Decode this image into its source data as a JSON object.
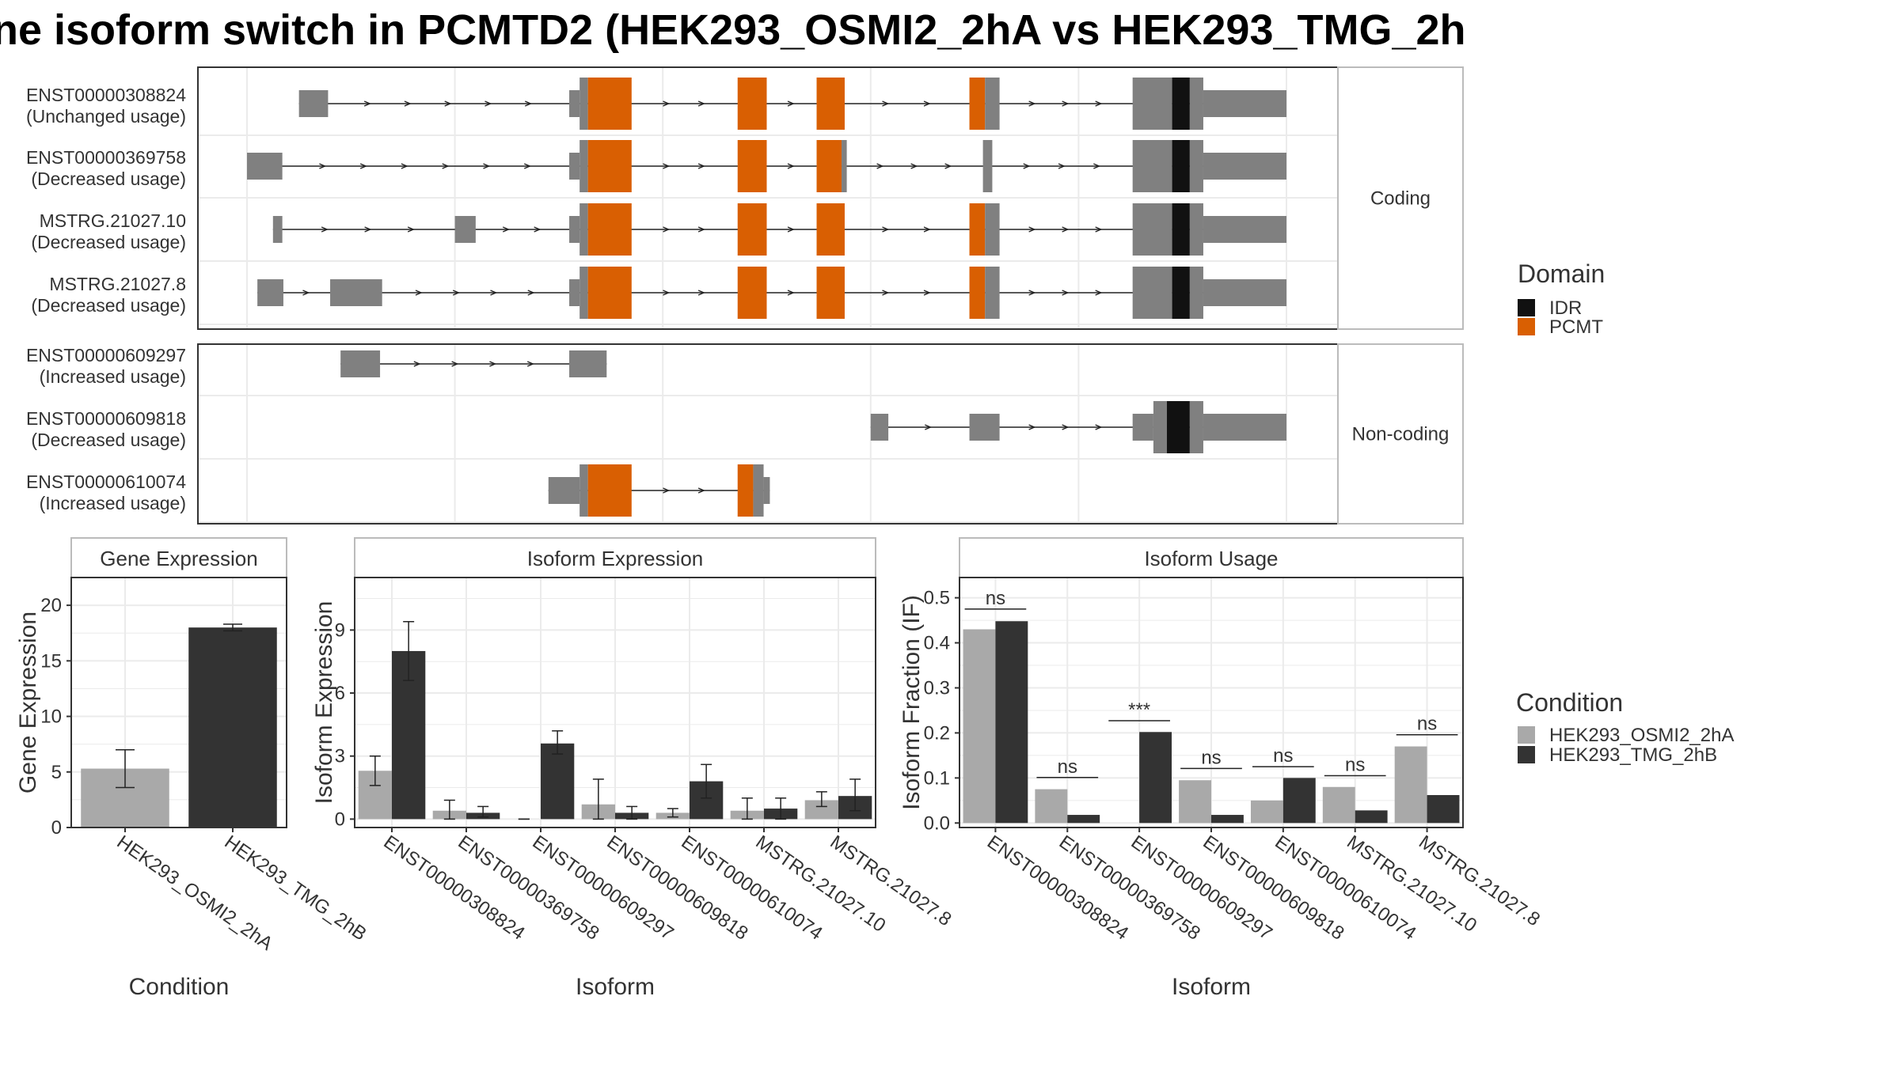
{
  "title": "ne isoform switch in PCMTD2 (HEK293_OSMI2_2hA vs HEK293_TMG_2h",
  "colors": {
    "exon": "#808080",
    "pcmt": "#D95F02",
    "idr": "#111111",
    "cond_a": "#A9A9A9",
    "cond_b": "#333333",
    "panel_border": "#333333",
    "strip_border": "#BBBBBB",
    "grid": "#EBEBEB"
  },
  "structure": {
    "facets": [
      {
        "label": "Coding",
        "transcripts": [
          {
            "id": "ENST00000308824",
            "usage": "(Unchanged usage)",
            "segments": [
              {
                "start": 0.05,
                "end": 0.078,
                "type": "exon",
                "h": "thin"
              },
              {
                "start": 0.31,
                "end": 0.32,
                "type": "exon",
                "h": "thin"
              },
              {
                "start": 0.32,
                "end": 0.328,
                "type": "exon",
                "h": "thick"
              },
              {
                "start": 0.328,
                "end": 0.37,
                "type": "pcmt",
                "h": "thick"
              },
              {
                "start": 0.472,
                "end": 0.5,
                "type": "pcmt",
                "h": "thick"
              },
              {
                "start": 0.548,
                "end": 0.575,
                "type": "pcmt",
                "h": "thick"
              },
              {
                "start": 0.695,
                "end": 0.71,
                "type": "pcmt",
                "h": "thick"
              },
              {
                "start": 0.71,
                "end": 0.724,
                "type": "exon",
                "h": "thick"
              },
              {
                "start": 0.852,
                "end": 0.89,
                "type": "exon",
                "h": "thick"
              },
              {
                "start": 0.89,
                "end": 0.907,
                "type": "idr",
                "h": "thick"
              },
              {
                "start": 0.907,
                "end": 0.92,
                "type": "exon",
                "h": "thick"
              },
              {
                "start": 0.92,
                "end": 1.0,
                "type": "exon",
                "h": "thin"
              }
            ]
          },
          {
            "id": "ENST00000369758",
            "usage": "(Decreased usage)",
            "segments": [
              {
                "start": 0.0,
                "end": 0.034,
                "type": "exon",
                "h": "thin"
              },
              {
                "start": 0.31,
                "end": 0.32,
                "type": "exon",
                "h": "thin"
              },
              {
                "start": 0.32,
                "end": 0.328,
                "type": "exon",
                "h": "thick"
              },
              {
                "start": 0.328,
                "end": 0.37,
                "type": "pcmt",
                "h": "thick"
              },
              {
                "start": 0.472,
                "end": 0.5,
                "type": "pcmt",
                "h": "thick"
              },
              {
                "start": 0.548,
                "end": 0.572,
                "type": "pcmt",
                "h": "thick"
              },
              {
                "start": 0.572,
                "end": 0.577,
                "type": "exon",
                "h": "thick"
              },
              {
                "start": 0.708,
                "end": 0.717,
                "type": "exon",
                "h": "thick"
              },
              {
                "start": 0.852,
                "end": 0.89,
                "type": "exon",
                "h": "thick"
              },
              {
                "start": 0.89,
                "end": 0.907,
                "type": "idr",
                "h": "thick"
              },
              {
                "start": 0.907,
                "end": 0.92,
                "type": "exon",
                "h": "thick"
              },
              {
                "start": 0.92,
                "end": 1.0,
                "type": "exon",
                "h": "thin"
              }
            ]
          },
          {
            "id": "MSTRG.21027.10",
            "usage": "(Decreased usage)",
            "segments": [
              {
                "start": 0.025,
                "end": 0.034,
                "type": "exon",
                "h": "thin"
              },
              {
                "start": 0.2,
                "end": 0.22,
                "type": "exon",
                "h": "thin"
              },
              {
                "start": 0.31,
                "end": 0.32,
                "type": "exon",
                "h": "thin"
              },
              {
                "start": 0.32,
                "end": 0.328,
                "type": "exon",
                "h": "thick"
              },
              {
                "start": 0.328,
                "end": 0.37,
                "type": "pcmt",
                "h": "thick"
              },
              {
                "start": 0.472,
                "end": 0.5,
                "type": "pcmt",
                "h": "thick"
              },
              {
                "start": 0.548,
                "end": 0.575,
                "type": "pcmt",
                "h": "thick"
              },
              {
                "start": 0.695,
                "end": 0.71,
                "type": "pcmt",
                "h": "thick"
              },
              {
                "start": 0.71,
                "end": 0.724,
                "type": "exon",
                "h": "thick"
              },
              {
                "start": 0.852,
                "end": 0.89,
                "type": "exon",
                "h": "thick"
              },
              {
                "start": 0.89,
                "end": 0.907,
                "type": "idr",
                "h": "thick"
              },
              {
                "start": 0.907,
                "end": 0.92,
                "type": "exon",
                "h": "thick"
              },
              {
                "start": 0.92,
                "end": 1.0,
                "type": "exon",
                "h": "thin"
              }
            ]
          },
          {
            "id": "MSTRG.21027.8",
            "usage": "(Decreased usage)",
            "segments": [
              {
                "start": 0.01,
                "end": 0.035,
                "type": "exon",
                "h": "thin"
              },
              {
                "start": 0.08,
                "end": 0.13,
                "type": "exon",
                "h": "thin"
              },
              {
                "start": 0.31,
                "end": 0.32,
                "type": "exon",
                "h": "thin"
              },
              {
                "start": 0.32,
                "end": 0.328,
                "type": "exon",
                "h": "thick"
              },
              {
                "start": 0.328,
                "end": 0.37,
                "type": "pcmt",
                "h": "thick"
              },
              {
                "start": 0.472,
                "end": 0.5,
                "type": "pcmt",
                "h": "thick"
              },
              {
                "start": 0.548,
                "end": 0.575,
                "type": "pcmt",
                "h": "thick"
              },
              {
                "start": 0.695,
                "end": 0.71,
                "type": "pcmt",
                "h": "thick"
              },
              {
                "start": 0.71,
                "end": 0.724,
                "type": "exon",
                "h": "thick"
              },
              {
                "start": 0.852,
                "end": 0.89,
                "type": "exon",
                "h": "thick"
              },
              {
                "start": 0.89,
                "end": 0.907,
                "type": "idr",
                "h": "thick"
              },
              {
                "start": 0.907,
                "end": 0.92,
                "type": "exon",
                "h": "thick"
              },
              {
                "start": 0.92,
                "end": 1.0,
                "type": "exon",
                "h": "thin"
              }
            ]
          }
        ]
      },
      {
        "label": "Non-coding",
        "transcripts": [
          {
            "id": "ENST00000609297",
            "usage": "(Increased usage)",
            "segments": [
              {
                "start": 0.09,
                "end": 0.128,
                "type": "exon",
                "h": "thin"
              },
              {
                "start": 0.31,
                "end": 0.346,
                "type": "exon",
                "h": "thin"
              }
            ]
          },
          {
            "id": "ENST00000609818",
            "usage": "(Decreased usage)",
            "segments": [
              {
                "start": 0.6,
                "end": 0.617,
                "type": "exon",
                "h": "thin"
              },
              {
                "start": 0.695,
                "end": 0.724,
                "type": "exon",
                "h": "thin"
              },
              {
                "start": 0.852,
                "end": 0.872,
                "type": "exon",
                "h": "thin"
              },
              {
                "start": 0.872,
                "end": 0.885,
                "type": "exon",
                "h": "thick"
              },
              {
                "start": 0.885,
                "end": 0.907,
                "type": "idr",
                "h": "thick"
              },
              {
                "start": 0.907,
                "end": 0.92,
                "type": "exon",
                "h": "thick"
              },
              {
                "start": 0.92,
                "end": 1.0,
                "type": "exon",
                "h": "thin"
              }
            ]
          },
          {
            "id": "ENST00000610074",
            "usage": "(Increased usage)",
            "segments": [
              {
                "start": 0.29,
                "end": 0.32,
                "type": "exon",
                "h": "thin"
              },
              {
                "start": 0.32,
                "end": 0.328,
                "type": "exon",
                "h": "thick"
              },
              {
                "start": 0.328,
                "end": 0.37,
                "type": "pcmt",
                "h": "thick"
              },
              {
                "start": 0.472,
                "end": 0.487,
                "type": "pcmt",
                "h": "thick"
              },
              {
                "start": 0.487,
                "end": 0.497,
                "type": "exon",
                "h": "thick"
              },
              {
                "start": 0.497,
                "end": 0.503,
                "type": "exon",
                "h": "thin"
              }
            ]
          }
        ]
      }
    ],
    "legend": {
      "title": "Domain",
      "items": [
        {
          "label": "IDR",
          "color": "#111111"
        },
        {
          "label": "PCMT",
          "color": "#D95F02"
        }
      ]
    }
  },
  "chart_data": [
    {
      "panel": "Gene Expression",
      "type": "bar",
      "xlabel": "Condition",
      "ylabel": "Gene Expression",
      "ylim": [
        0,
        22.5
      ],
      "yticks": [
        0,
        5,
        10,
        15,
        20
      ],
      "categories": [
        "HEK293_OSMI2_2hA",
        "HEK293_TMG_2hB"
      ],
      "values": [
        5.3,
        18.0
      ],
      "errors": [
        [
          3.6,
          7.0
        ],
        [
          17.7,
          18.3
        ]
      ]
    },
    {
      "panel": "Isoform Expression",
      "type": "bar",
      "xlabel": "Isoform",
      "ylabel": "Isoform Expression",
      "ylim": [
        -0.4,
        11.5
      ],
      "yticks": [
        0,
        3,
        6,
        9
      ],
      "categories": [
        "ENST00000308824",
        "ENST00000369758",
        "ENST00000609297",
        "ENST00000609818",
        "ENST00000610074",
        "MSTRG.21027.10",
        "MSTRG.21027.8"
      ],
      "series": [
        {
          "name": "HEK293_OSMI2_2hA",
          "values": [
            2.3,
            0.4,
            0.0,
            0.7,
            0.3,
            0.4,
            0.9
          ],
          "errors": [
            [
              1.6,
              3.0
            ],
            [
              0.0,
              0.9
            ],
            [
              0.0,
              0.0
            ],
            [
              0.0,
              1.9
            ],
            [
              0.1,
              0.5
            ],
            [
              0.0,
              1.0
            ],
            [
              0.6,
              1.3
            ]
          ]
        },
        {
          "name": "HEK293_TMG_2hB",
          "values": [
            8.0,
            0.3,
            3.6,
            0.3,
            1.8,
            0.5,
            1.1
          ],
          "errors": [
            [
              6.6,
              9.4
            ],
            [
              0.1,
              0.6
            ],
            [
              3.1,
              4.2
            ],
            [
              0.0,
              0.6
            ],
            [
              1.0,
              2.6
            ],
            [
              0.0,
              1.0
            ],
            [
              0.4,
              1.9
            ]
          ]
        }
      ]
    },
    {
      "panel": "Isoform Usage",
      "type": "bar",
      "xlabel": "Isoform",
      "ylabel": "Isoform Fraction (IF)",
      "ylim": [
        -0.01,
        0.545
      ],
      "yticks": [
        0.0,
        0.1,
        0.2,
        0.3,
        0.4,
        0.5
      ],
      "ytick_labels": [
        "0.0",
        "0.1",
        "0.2",
        "0.3",
        "0.4",
        "0.5"
      ],
      "categories": [
        "ENST00000308824",
        "ENST00000369758",
        "ENST00000609297",
        "ENST00000609818",
        "ENST00000610074",
        "MSTRG.21027.10",
        "MSTRG.21027.8"
      ],
      "series": [
        {
          "name": "HEK293_OSMI2_2hA",
          "values": [
            0.43,
            0.075,
            0.0,
            0.095,
            0.05,
            0.08,
            0.17
          ]
        },
        {
          "name": "HEK293_TMG_2hB",
          "values": [
            0.448,
            0.018,
            0.202,
            0.018,
            0.1,
            0.028,
            0.062
          ]
        }
      ],
      "significance": [
        "ns",
        "ns",
        "***",
        "ns",
        "ns",
        "ns",
        "ns"
      ],
      "significance_at": [
        0.475,
        0.101,
        0.227,
        0.121,
        0.125,
        0.105,
        0.196
      ]
    }
  ],
  "condition_legend": {
    "title": "Condition",
    "items": [
      {
        "label": "HEK293_OSMI2_2hA",
        "color": "#A9A9A9"
      },
      {
        "label": "HEK293_TMG_2hB",
        "color": "#333333"
      }
    ]
  }
}
